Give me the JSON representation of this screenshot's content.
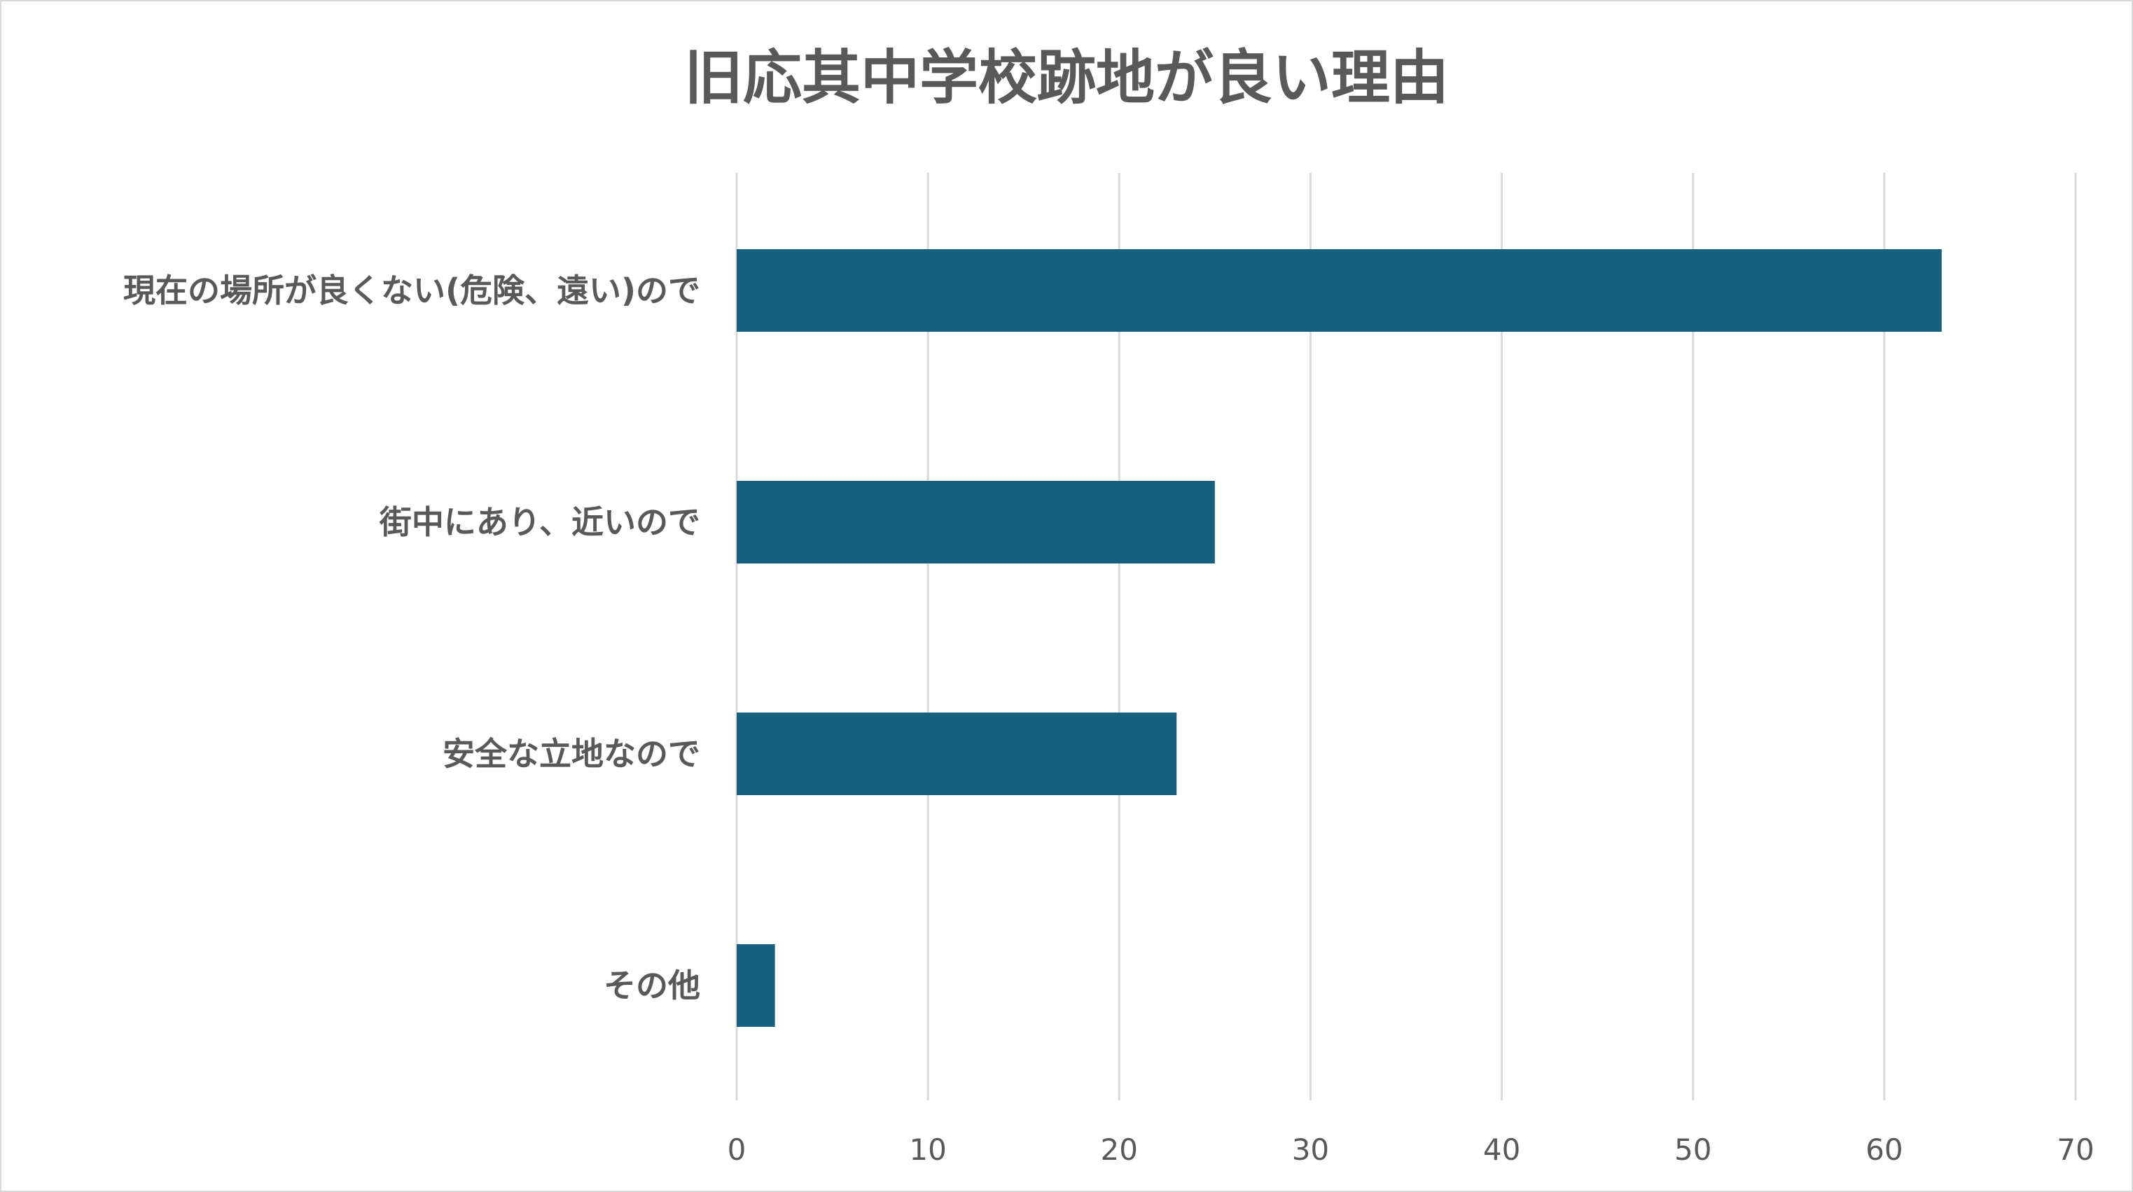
{
  "chart_data": {
    "type": "bar",
    "orientation": "horizontal",
    "title": "旧応其中学校跡地が良い理由",
    "categories": [
      "現在の場所が良くない(危険、遠い)ので",
      "街中にあり、近いので",
      "安全な立地なので",
      "その他"
    ],
    "values": [
      63,
      25,
      23,
      2
    ],
    "xlim": [
      0,
      70
    ],
    "xticks": [
      0,
      10,
      20,
      30,
      40,
      50,
      60,
      70
    ],
    "xlabel": "",
    "ylabel": "",
    "grid": true,
    "legend": "none",
    "bar_color": "#17607f"
  }
}
